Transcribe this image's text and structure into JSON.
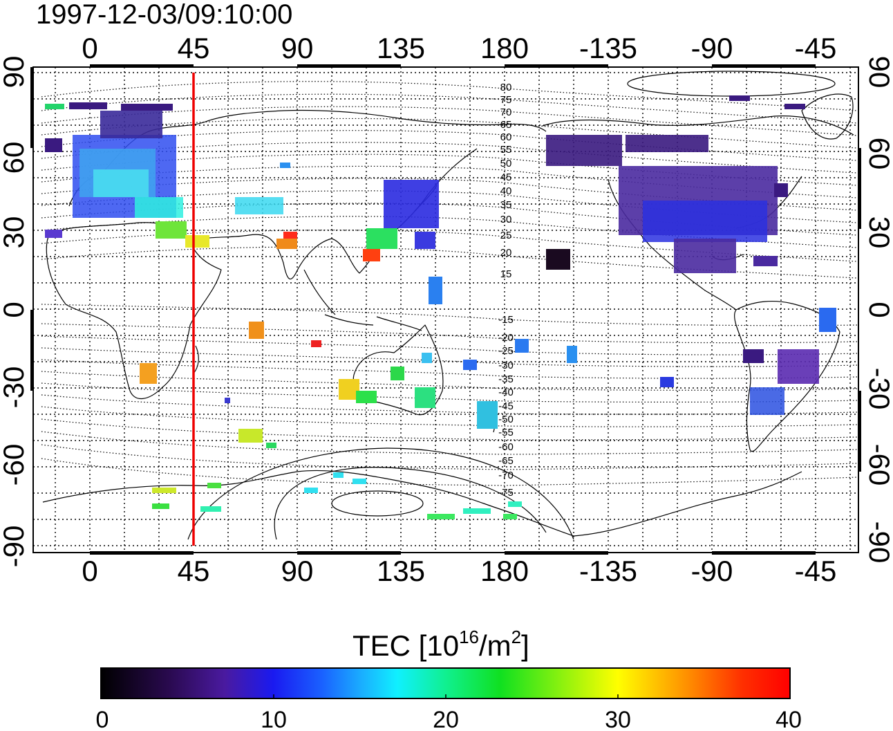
{
  "title": "1997-12-03/09:10:00",
  "top_lon_ticks": [
    "0",
    "45",
    "90",
    "135",
    "180",
    "-135",
    "-90",
    "-45"
  ],
  "bottom_lon_ticks": [
    "0",
    "45",
    "90",
    "135",
    "180",
    "-135",
    "-90",
    "-45"
  ],
  "left_lat_ticks": [
    "90",
    "60",
    "30",
    "0",
    "-30",
    "-60",
    "-90"
  ],
  "right_lat_ticks": [
    "90",
    "60",
    "30",
    "0",
    "-30",
    "-60",
    "-90"
  ],
  "contour_labels_north": [
    "80",
    "75",
    "70",
    "65",
    "60",
    "55",
    "50",
    "45",
    "40",
    "35",
    "30",
    "25",
    "20",
    "15"
  ],
  "contour_labels_south": [
    "-15",
    "-20",
    "-25",
    "-30",
    "-35",
    "-40",
    "-45",
    "-50",
    "-55",
    "-60",
    "-65",
    "-70",
    "-75"
  ],
  "colorbar": {
    "title_main": "TEC  [10",
    "title_sup1": "16",
    "title_mid": "/m",
    "title_sup2": "2",
    "title_end": "]",
    "min": 0,
    "max": 40,
    "tick_labels": [
      "0",
      "10",
      "20",
      "30",
      "40"
    ]
  },
  "meridian_marker": {
    "longitude": 45,
    "color": "#ee0000"
  },
  "colors": {
    "frame": "#000000",
    "grid": "#000000",
    "coast": "#000000"
  }
}
